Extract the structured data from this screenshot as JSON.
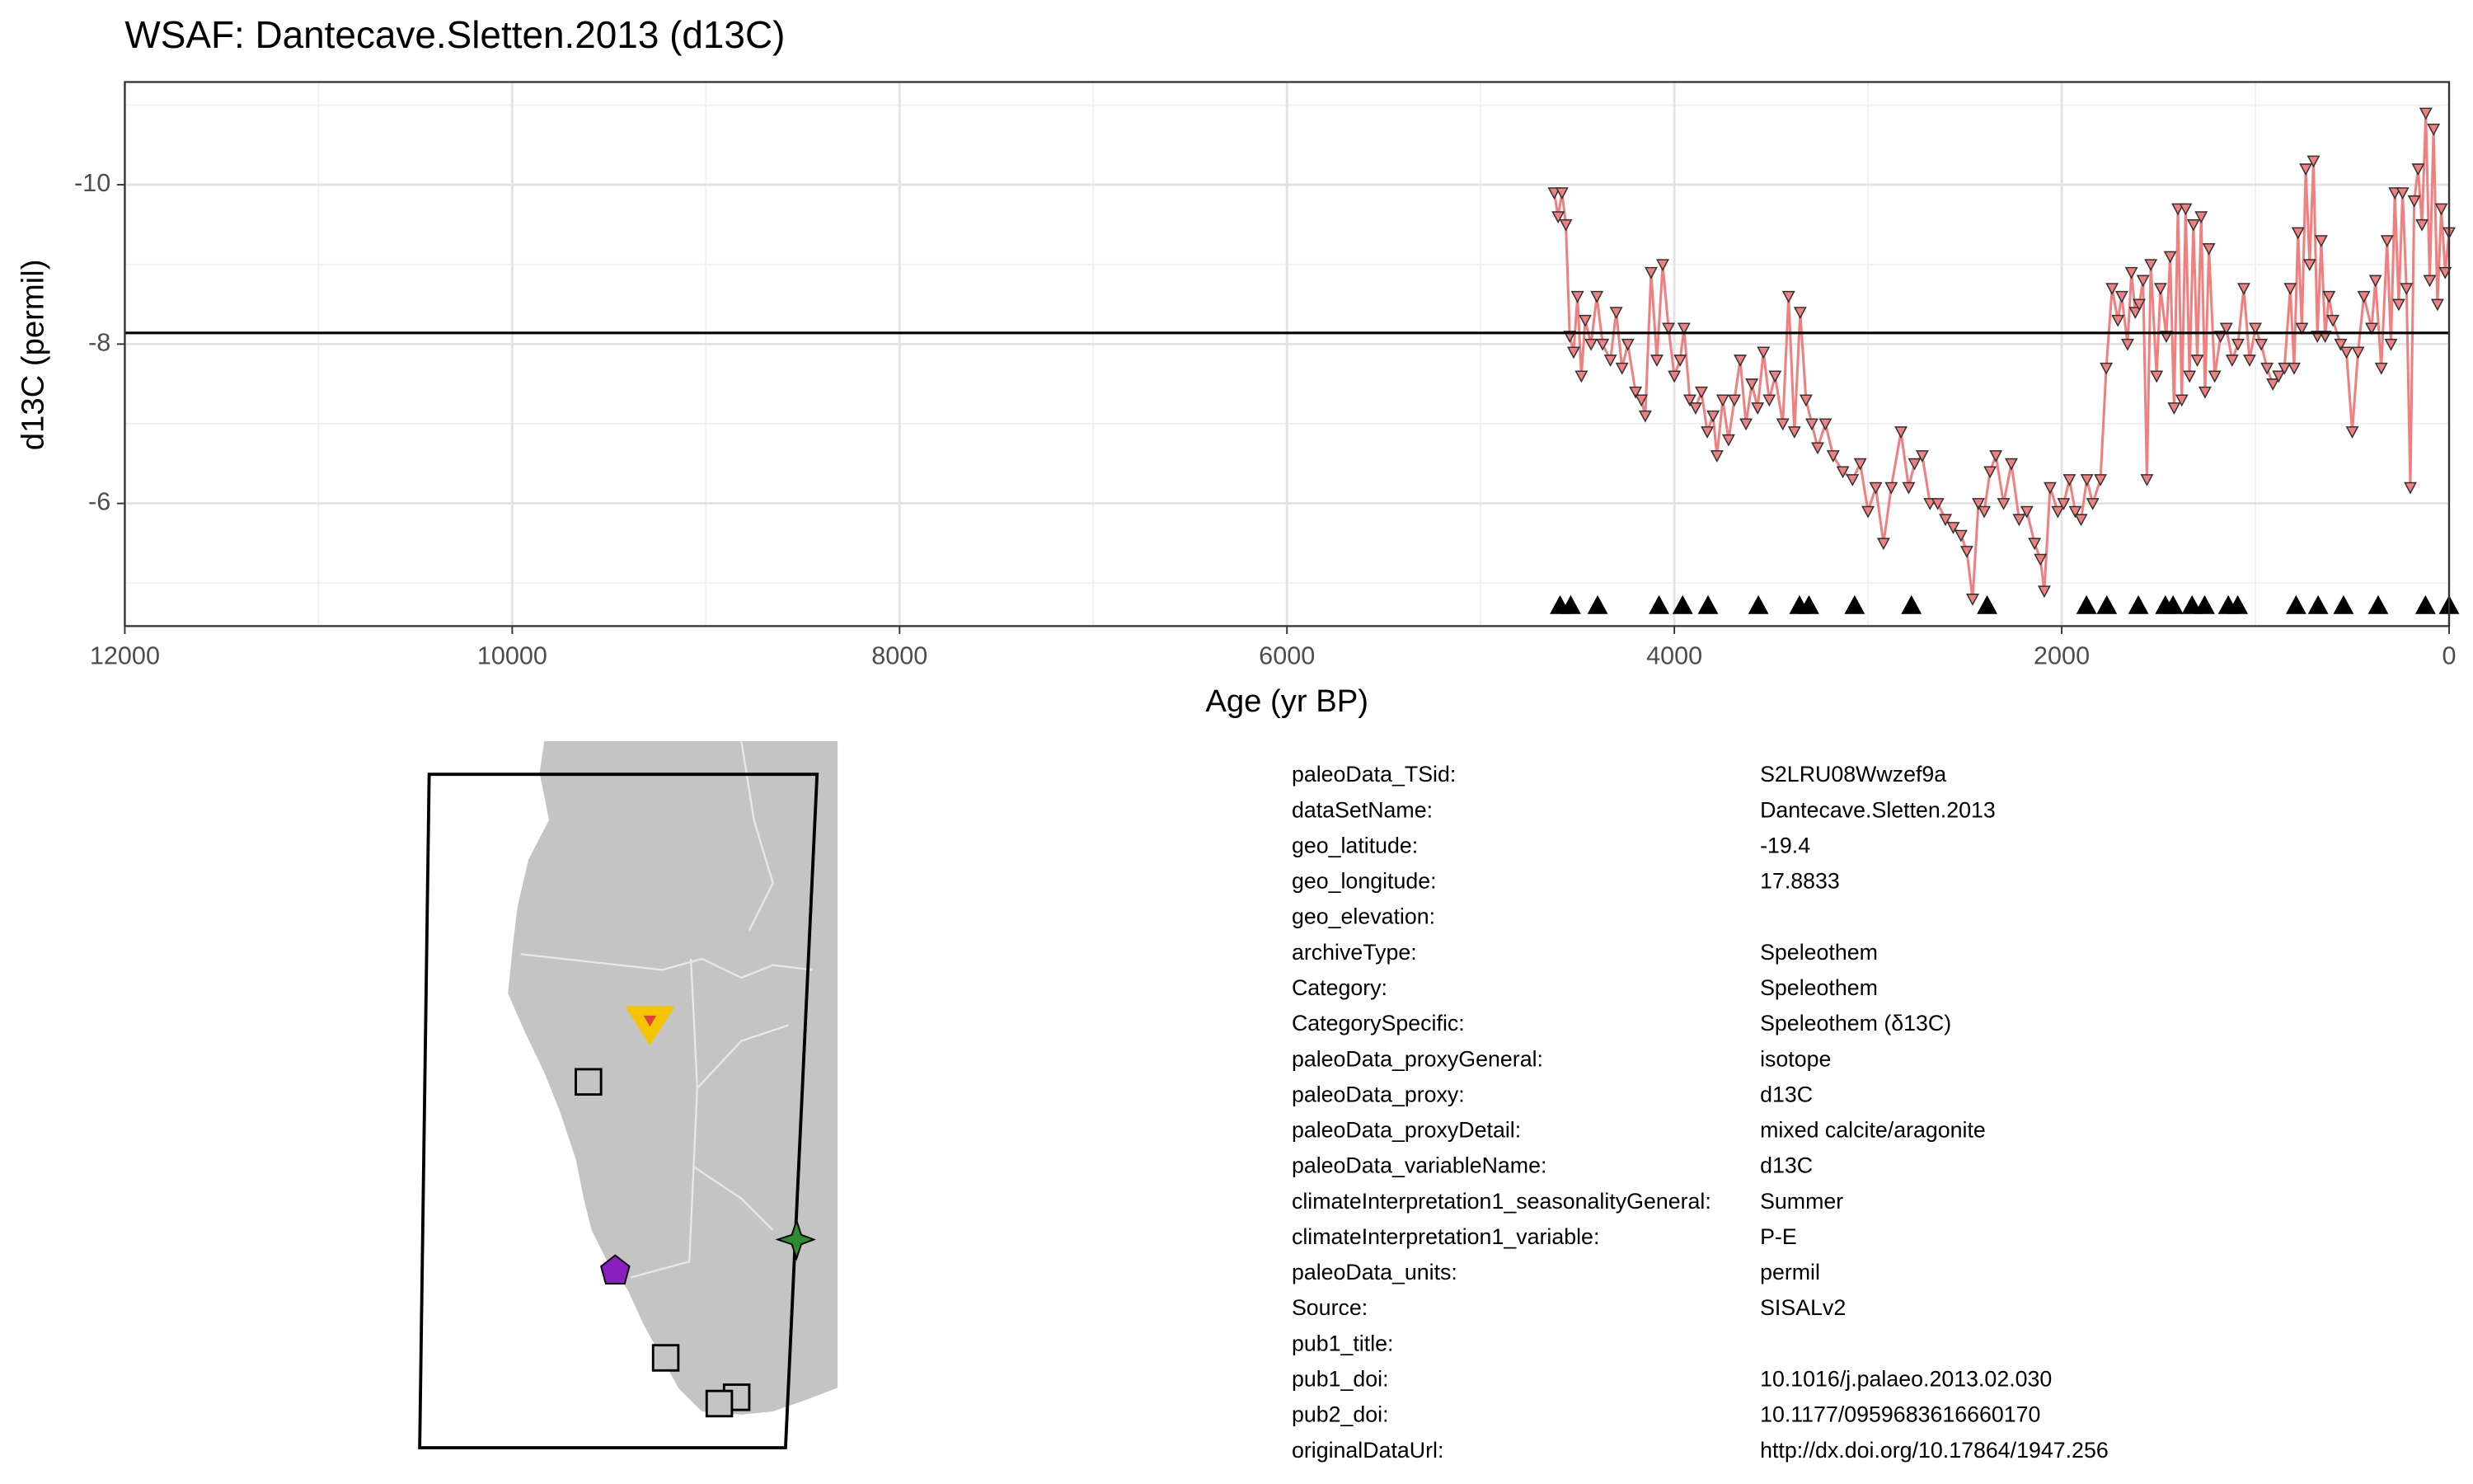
{
  "chart_data": {
    "type": "line",
    "title": "WSAF: Dantecave.Sletten.2013 (d13C)",
    "xlabel": "Age (yr BP)",
    "ylabel": "d13C (permil)",
    "x": [
      4620,
      4600,
      4580,
      4560,
      4540,
      4520,
      4500,
      4480,
      4460,
      4430,
      4400,
      4370,
      4330,
      4300,
      4270,
      4240,
      4200,
      4170,
      4150,
      4120,
      4090,
      4060,
      4030,
      4000,
      3970,
      3950,
      3920,
      3890,
      3860,
      3830,
      3800,
      3780,
      3750,
      3720,
      3690,
      3660,
      3630,
      3600,
      3570,
      3540,
      3510,
      3480,
      3440,
      3410,
      3380,
      3350,
      3320,
      3290,
      3260,
      3220,
      3180,
      3130,
      3080,
      3040,
      3000,
      2960,
      2920,
      2880,
      2830,
      2790,
      2760,
      2720,
      2680,
      2640,
      2600,
      2560,
      2520,
      2490,
      2460,
      2430,
      2400,
      2370,
      2340,
      2300,
      2260,
      2220,
      2180,
      2140,
      2110,
      2090,
      2060,
      2020,
      1990,
      1960,
      1930,
      1900,
      1870,
      1840,
      1800,
      1770,
      1740,
      1710,
      1690,
      1660,
      1640,
      1620,
      1600,
      1580,
      1560,
      1540,
      1510,
      1490,
      1460,
      1440,
      1420,
      1400,
      1380,
      1360,
      1340,
      1320,
      1300,
      1280,
      1260,
      1240,
      1210,
      1180,
      1150,
      1120,
      1090,
      1060,
      1030,
      1000,
      970,
      940,
      910,
      880,
      850,
      820,
      800,
      780,
      760,
      740,
      720,
      700,
      680,
      660,
      640,
      620,
      600,
      560,
      530,
      500,
      470,
      440,
      400,
      380,
      350,
      320,
      300,
      280,
      260,
      240,
      220,
      200,
      180,
      160,
      140,
      120,
      100,
      80,
      60,
      40,
      20,
      0
    ],
    "values": [
      -9.9,
      -9.6,
      -9.9,
      -9.5,
      -8.1,
      -7.9,
      -8.6,
      -7.6,
      -8.3,
      -8.0,
      -8.6,
      -8.0,
      -7.8,
      -8.4,
      -7.7,
      -8.0,
      -7.4,
      -7.3,
      -7.1,
      -8.9,
      -7.8,
      -9.0,
      -8.2,
      -7.6,
      -7.8,
      -8.2,
      -7.3,
      -7.2,
      -7.4,
      -6.9,
      -7.1,
      -6.6,
      -7.3,
      -6.8,
      -7.3,
      -7.8,
      -7.0,
      -7.5,
      -7.2,
      -7.9,
      -7.3,
      -7.6,
      -7.0,
      -8.6,
      -6.9,
      -8.4,
      -7.3,
      -7.0,
      -6.7,
      -7.0,
      -6.6,
      -6.4,
      -6.3,
      -6.5,
      -5.9,
      -6.2,
      -5.5,
      -6.2,
      -6.9,
      -6.2,
      -6.5,
      -6.6,
      -6.0,
      -6.0,
      -5.8,
      -5.7,
      -5.6,
      -5.4,
      -4.8,
      -6.0,
      -5.9,
      -6.4,
      -6.6,
      -6.0,
      -6.5,
      -5.8,
      -5.9,
      -5.5,
      -5.3,
      -4.9,
      -6.2,
      -5.9,
      -6.0,
      -6.3,
      -5.9,
      -5.8,
      -6.3,
      -6.0,
      -6.3,
      -7.7,
      -8.7,
      -8.3,
      -8.6,
      -8.0,
      -8.9,
      -8.4,
      -8.5,
      -8.8,
      -6.3,
      -9.0,
      -7.6,
      -8.7,
      -8.1,
      -9.1,
      -7.2,
      -9.7,
      -7.3,
      -9.7,
      -7.6,
      -9.5,
      -7.8,
      -9.6,
      -7.4,
      -9.2,
      -7.6,
      -8.1,
      -8.2,
      -7.8,
      -8.0,
      -8.7,
      -7.8,
      -8.2,
      -8.0,
      -7.7,
      -7.5,
      -7.6,
      -7.7,
      -8.7,
      -7.7,
      -9.4,
      -8.2,
      -10.2,
      -9.0,
      -10.3,
      -8.1,
      -9.3,
      -8.1,
      -8.6,
      -8.3,
      -8.0,
      -7.9,
      -6.9,
      -7.9,
      -8.6,
      -8.2,
      -8.8,
      -7.7,
      -9.3,
      -8.0,
      -9.9,
      -8.5,
      -9.9,
      -8.7,
      -6.2,
      -9.8,
      -10.2,
      -9.5,
      -10.9,
      -8.8,
      -10.7,
      -8.5,
      -9.7,
      -8.9,
      -9.4
    ],
    "color": "#f08080",
    "mean_line": -8.14,
    "tie_points": [
      4590,
      4535,
      4396,
      4079,
      3957,
      3826,
      3566,
      3354,
      3305,
      3069,
      2776,
      2385,
      1872,
      1767,
      1604,
      1465,
      1425,
      1327,
      1262,
      1140,
      1091,
      790,
      676,
      545,
      366,
      122,
      0
    ],
    "tie_point_level": -4.73,
    "xlim": [
      12000,
      0
    ],
    "ylim": [
      -4.46,
      -11.29
    ],
    "xticks": [
      12000,
      10000,
      8000,
      6000,
      4000,
      2000,
      0
    ],
    "xminor": [
      11000,
      9000,
      7000,
      5000,
      3000,
      1000
    ],
    "yticks": [
      -10,
      -8,
      -6
    ],
    "yminor": [
      -11,
      -9,
      -7,
      -5
    ],
    "grid": true
  },
  "metadata": {
    "rows": [
      [
        "paleoData_TSid:",
        "S2LRU08Wwzef9a"
      ],
      [
        "dataSetName:",
        "Dantecave.Sletten.2013"
      ],
      [
        "geo_latitude:",
        "-19.4"
      ],
      [
        "geo_longitude:",
        "17.8833"
      ],
      [
        "geo_elevation:"
      ],
      [
        "archiveType:",
        "Speleothem"
      ],
      [
        "Category:",
        "Speleothem"
      ],
      [
        "CategorySpecific:",
        "Speleothem (δ13C)"
      ],
      [
        "paleoData_proxyGeneral:",
        "isotope"
      ],
      [
        "paleoData_proxy:",
        "d13C"
      ],
      [
        "paleoData_proxyDetail:",
        "mixed calcite/aragonite"
      ],
      [
        "paleoData_variableName:",
        "d13C"
      ],
      [
        "climateInterpretation1_seasonalityGeneral:",
        "Summer"
      ],
      [
        "climateInterpretation1_variable:",
        "P-E"
      ],
      [
        "paleoData_units:",
        "permil"
      ],
      [
        "Source:",
        "SISALv2"
      ],
      [
        "pub1_title:"
      ],
      [
        "pub1_doi:",
        "10.1016/j.palaeo.2013.02.030"
      ],
      [
        "pub2_doi:",
        "10.1177/0959683616660170"
      ],
      [
        "originalDataUrl:",
        "http://dx.doi.org/10.17864/1947.256"
      ]
    ]
  }
}
